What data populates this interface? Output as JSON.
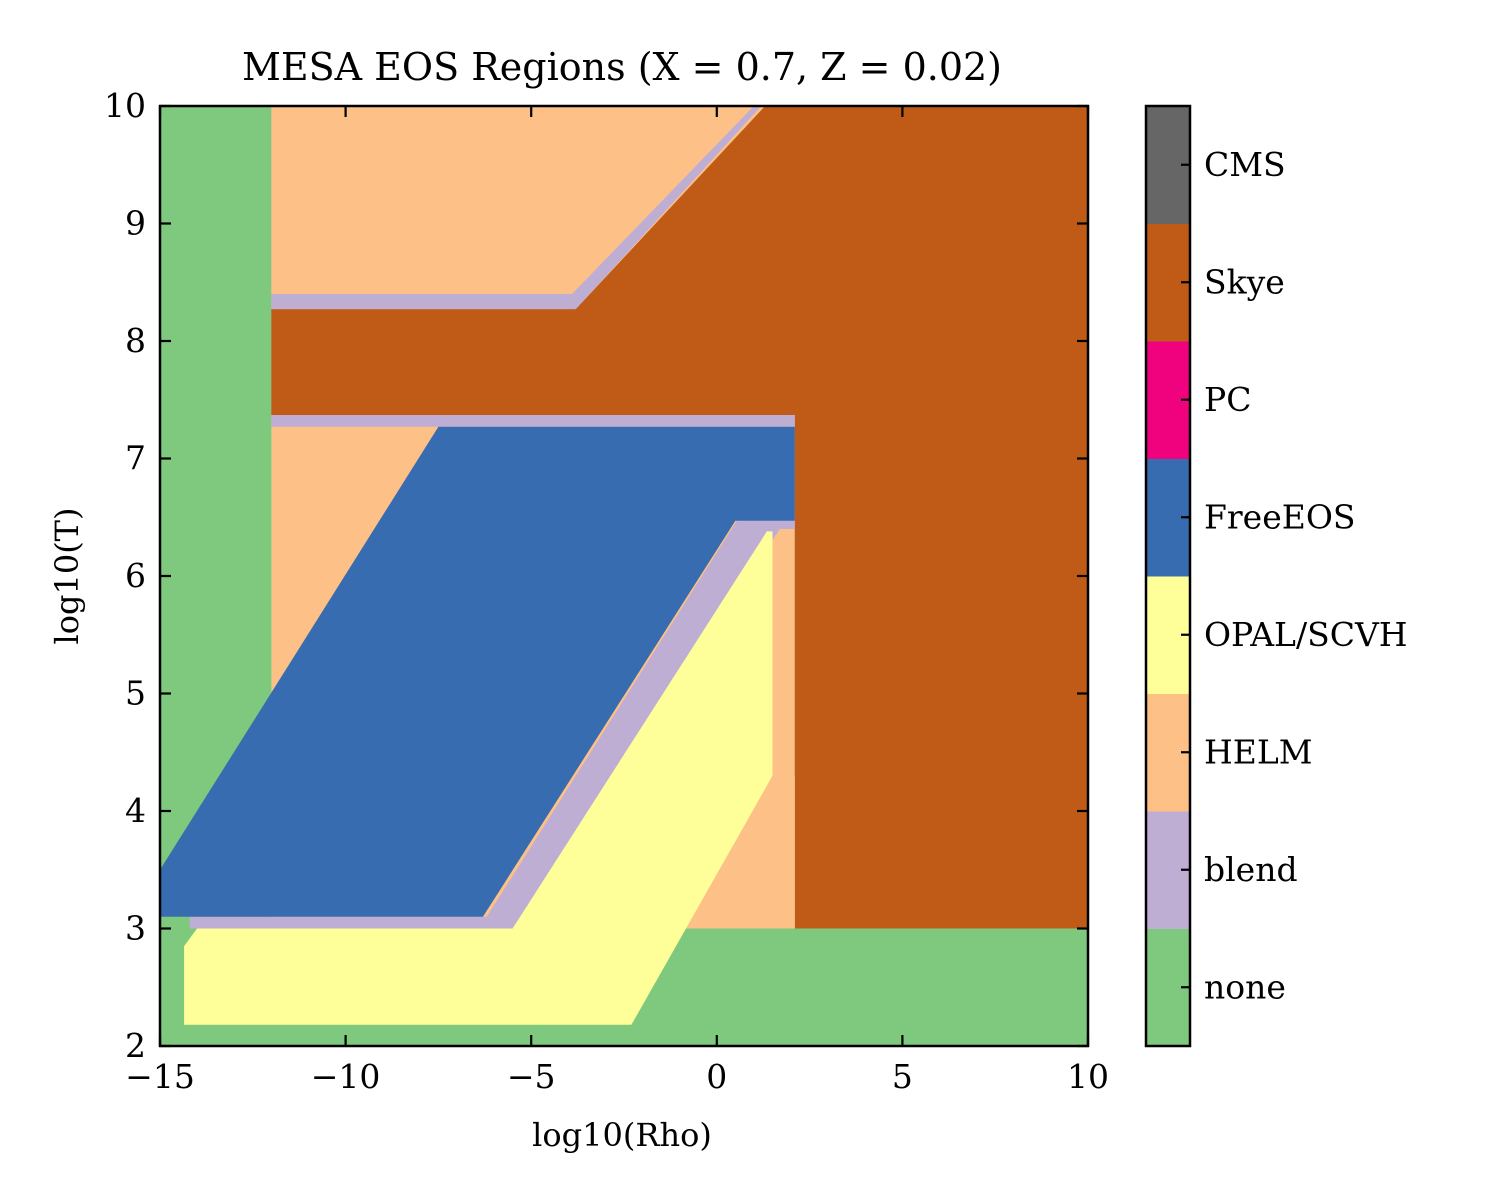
{
  "chart_data": {
    "type": "heatmap",
    "title": "MESA EOS Regions (X = 0.7, Z = 0.02)",
    "xlabel": "log10(Rho)",
    "ylabel": "log10(T)",
    "xlim": [
      -15,
      10
    ],
    "ylim": [
      2,
      10
    ],
    "x_ticks": [
      -15,
      -10,
      -5,
      0,
      5,
      10
    ],
    "x_tick_labels": [
      "−15",
      "−10",
      "−5",
      "0",
      "5",
      "10"
    ],
    "y_ticks": [
      2,
      3,
      4,
      5,
      6,
      7,
      8,
      9,
      10
    ],
    "y_tick_labels": [
      "2",
      "3",
      "4",
      "5",
      "6",
      "7",
      "8",
      "9",
      "10"
    ],
    "grid": false,
    "colorbar": {
      "categories": [
        "none",
        "blend",
        "HELM",
        "OPAL/SCVH",
        "FreeEOS",
        "PC",
        "Skye",
        "CMS"
      ],
      "colors": [
        "#7fc97f",
        "#beaed4",
        "#fdc086",
        "#ffff99",
        "#386cb0",
        "#f0027f",
        "#bf5b17",
        "#666666"
      ]
    },
    "regions": [
      {
        "name": "none",
        "polygon": [
          [
            -15,
            2
          ],
          [
            10,
            2
          ],
          [
            10,
            10
          ],
          [
            -15,
            10
          ]
        ]
      },
      {
        "name": "HELM",
        "polygon": [
          [
            -12,
            3
          ],
          [
            2.1,
            3
          ],
          [
            2.1,
            10
          ],
          [
            -12,
            10
          ]
        ]
      },
      {
        "name": "Skye",
        "polygon": [
          [
            -12,
            7.37
          ],
          [
            0,
            7.37
          ],
          [
            1.2,
            8.27
          ],
          [
            -12,
            8.27
          ]
        ]
      },
      {
        "name": "blend",
        "polygon": [
          [
            -12,
            8.27
          ],
          [
            -3.8,
            8.27
          ],
          [
            1.2,
            10
          ],
          [
            -12,
            10
          ]
        ]
      },
      {
        "name": "HELM",
        "polygon": [
          [
            -12,
            8.4
          ],
          [
            -3.9,
            8.4
          ],
          [
            1.0,
            10
          ],
          [
            -12,
            10
          ]
        ]
      },
      {
        "name": "Skye",
        "polygon": [
          [
            -3.8,
            8.27
          ],
          [
            1.3,
            10
          ],
          [
            10,
            10
          ],
          [
            10,
            3
          ],
          [
            2.1,
            3
          ],
          [
            2.1,
            7.37
          ],
          [
            -12,
            7.37
          ],
          [
            -12,
            8.27
          ]
        ]
      },
      {
        "name": "blend",
        "polygon": [
          [
            -12,
            7.27
          ],
          [
            2.1,
            7.27
          ],
          [
            2.1,
            7.37
          ],
          [
            -12,
            7.37
          ]
        ]
      },
      {
        "name": "blend",
        "polygon": [
          [
            -14.2,
            3
          ],
          [
            -5.5,
            3
          ],
          [
            1.7,
            6.4
          ],
          [
            2.1,
            6.4
          ],
          [
            2.1,
            6.55
          ],
          [
            0.7,
            6.55
          ],
          [
            -6.2,
            3.1
          ],
          [
            -14.2,
            3.1
          ]
        ]
      },
      {
        "name": "OPAL/SCVH",
        "polygon": [
          [
            -14.35,
            2.18
          ],
          [
            -2.3,
            2.18
          ],
          [
            1.5,
            4.3
          ],
          [
            1.5,
            6.38
          ],
          [
            1.35,
            6.38
          ],
          [
            -5.5,
            3
          ],
          [
            -14.0,
            3
          ],
          [
            -14.35,
            2.85
          ]
        ]
      },
      {
        "name": "HELM",
        "polygon": [
          [
            -0.8,
            3
          ],
          [
            2.1,
            3
          ],
          [
            2.1,
            4.3
          ],
          [
            1.5,
            4.3
          ]
        ]
      },
      {
        "name": "FreeEOS",
        "polygon": [
          [
            -15,
            3.1
          ],
          [
            -6.3,
            3.1
          ],
          [
            0.5,
            6.47
          ],
          [
            2.1,
            6.47
          ],
          [
            2.1,
            7.27
          ],
          [
            -7.5,
            7.27
          ],
          [
            -15,
            3.5
          ]
        ]
      }
    ]
  }
}
